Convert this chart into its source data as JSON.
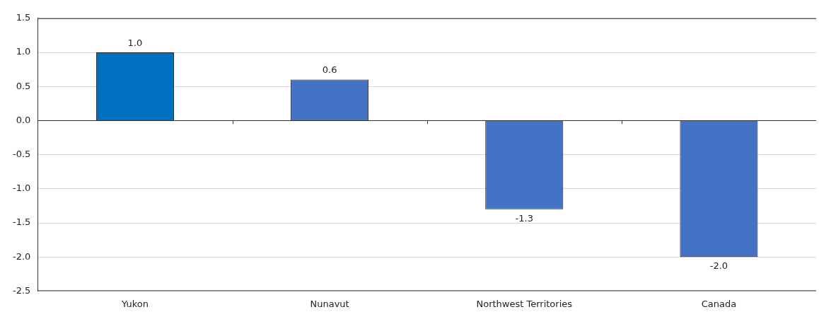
{
  "chart_data": {
    "type": "bar",
    "categories": [
      "Yukon",
      "Nunavut",
      "Northwest Territories",
      "Canada"
    ],
    "values": [
      1.0,
      0.6,
      -1.3,
      -2.0
    ],
    "colors": [
      "#0070c0",
      "#4472c4",
      "#4472c4",
      "#4472c4"
    ],
    "value_labels": [
      "1.0",
      "0.6",
      "-1.3",
      "-2.0"
    ],
    "ylim": [
      -2.5,
      1.5
    ],
    "yticks": [
      -2.5,
      {
        "value": -2,
        "label": "-2.0"
      },
      -1.5,
      {
        "value": -1,
        "label": "-1.0"
      },
      -0.5,
      {
        "value": 0,
        "label": "0.0"
      },
      0.5,
      {
        "value": 1,
        "label": "1.0"
      },
      1.5
    ],
    "grid": "y",
    "legend": false
  }
}
